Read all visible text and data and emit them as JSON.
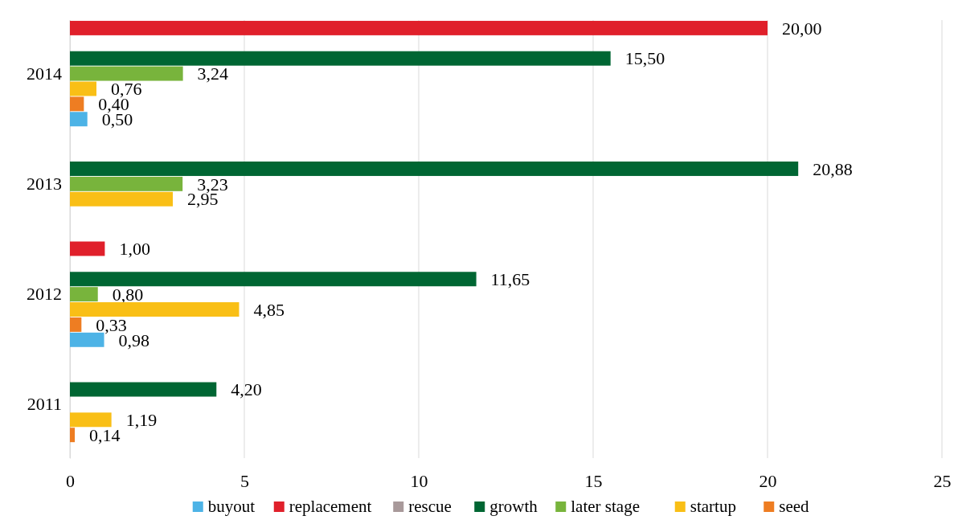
{
  "chart_data": {
    "type": "bar",
    "orientation": "horizontal",
    "categories": [
      "2014",
      "2013",
      "2012",
      "2011"
    ],
    "xlim": [
      0,
      25
    ],
    "xticks": [
      0,
      5,
      10,
      15,
      20,
      25
    ],
    "grid": "x",
    "legend": "bottom",
    "series": [
      {
        "name": "buyout",
        "color": "#4db3e6",
        "values": [
          0.5,
          null,
          0.98,
          null
        ],
        "value_labels": [
          "0,50",
          null,
          "0,98",
          null
        ]
      },
      {
        "name": "replacement",
        "color": "#e0202b",
        "values": [
          20.0,
          null,
          1.0,
          null
        ],
        "value_labels": [
          "20,00",
          null,
          "1,00",
          null
        ]
      },
      {
        "name": "rescue",
        "color": "#a8999a",
        "values": [
          null,
          null,
          null,
          null
        ],
        "value_labels": [
          null,
          null,
          null,
          null
        ]
      },
      {
        "name": "growth",
        "color": "#006633",
        "values": [
          15.5,
          20.88,
          11.65,
          4.2
        ],
        "value_labels": [
          "15,50",
          "20,88",
          "11,65",
          "4,20"
        ]
      },
      {
        "name": "later stage",
        "color": "#78b43c",
        "values": [
          3.24,
          3.23,
          0.8,
          null
        ],
        "value_labels": [
          "3,24",
          "3,23",
          "0,80",
          null
        ]
      },
      {
        "name": "startup",
        "color": "#f9bf16",
        "values": [
          0.76,
          2.95,
          4.85,
          1.19
        ],
        "value_labels": [
          "0,76",
          "2,95",
          "4,85",
          "1,19"
        ]
      },
      {
        "name": "seed",
        "color": "#ee7d22",
        "values": [
          0.4,
          null,
          0.33,
          0.14
        ],
        "value_labels": [
          "0,40",
          null,
          "0,33",
          "0,14"
        ]
      }
    ]
  }
}
